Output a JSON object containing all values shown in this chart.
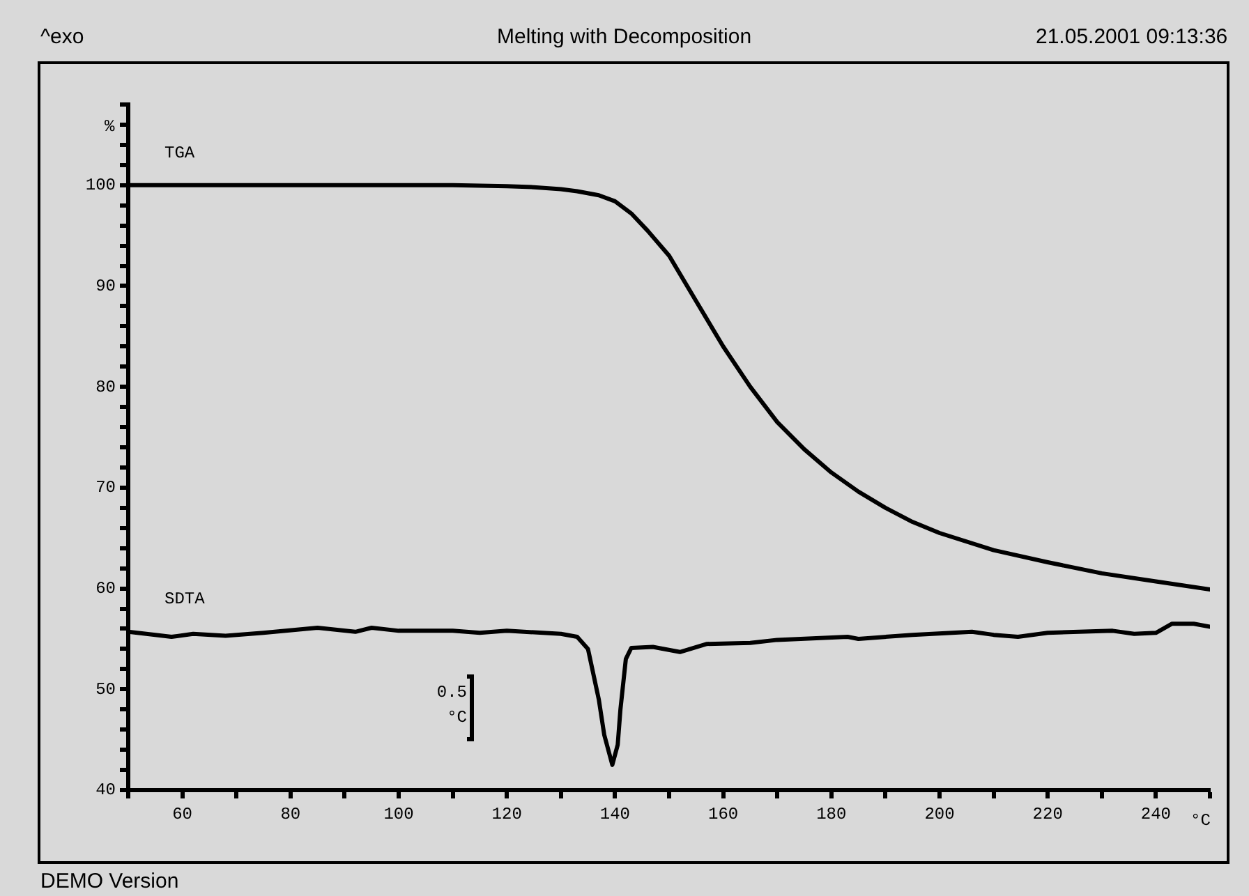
{
  "chart_data": {
    "type": "line",
    "title": "Melting with Decomposition",
    "xlabel": "°C",
    "ylabel": "%",
    "annotations": [
      "^exo",
      "21.05.2001 09:13:36",
      "0.5 °C",
      "DEMO Version"
    ],
    "xlim": [
      50,
      250
    ],
    "xticks": [
      {
        "value": 50,
        "label": null
      },
      60,
      {
        "value": 70,
        "label": null
      },
      80,
      {
        "value": 90,
        "label": null
      },
      100,
      {
        "value": 110,
        "label": null
      },
      120,
      {
        "value": 130,
        "label": null
      },
      140,
      {
        "value": 150,
        "label": null
      },
      160,
      {
        "value": 170,
        "label": null
      },
      180,
      {
        "value": 190,
        "label": null
      },
      200,
      {
        "value": 210,
        "label": null
      },
      220,
      {
        "value": 230,
        "label": null
      },
      240,
      {
        "value": 250,
        "label": null
      }
    ],
    "ylim": [
      40,
      108
    ],
    "yticks": [
      40,
      {
        "value": 42,
        "label": null
      },
      {
        "value": 44,
        "label": null
      },
      {
        "value": 46,
        "label": null
      },
      {
        "value": 48,
        "label": null
      },
      50,
      {
        "value": 52,
        "label": null
      },
      {
        "value": 54,
        "label": null
      },
      {
        "value": 56,
        "label": null
      },
      {
        "value": 58,
        "label": null
      },
      60,
      {
        "value": 62,
        "label": null
      },
      {
        "value": 64,
        "label": null
      },
      {
        "value": 66,
        "label": null
      },
      {
        "value": 68,
        "label": null
      },
      70,
      {
        "value": 72,
        "label": null
      },
      {
        "value": 74,
        "label": null
      },
      {
        "value": 76,
        "label": null
      },
      {
        "value": 78,
        "label": null
      },
      80,
      {
        "value": 82,
        "label": null
      },
      {
        "value": 84,
        "label": null
      },
      {
        "value": 86,
        "label": null
      },
      {
        "value": 88,
        "label": null
      },
      90,
      {
        "value": 92,
        "label": null
      },
      {
        "value": 94,
        "label": null
      },
      {
        "value": 96,
        "label": null
      },
      {
        "value": 98,
        "label": null
      },
      100,
      {
        "value": 102,
        "label": null
      },
      {
        "value": 104,
        "label": null
      },
      {
        "value": 106,
        "label": null
      },
      {
        "value": 108,
        "label": null
      }
    ],
    "grid": false,
    "legend": false,
    "marker": "none",
    "line_style": "solid",
    "series": [
      {
        "name": "TGA",
        "color": "#000000",
        "x": [
          50,
          70,
          90,
          110,
          120,
          125,
          130,
          133,
          137,
          140,
          143,
          146,
          150,
          155,
          160,
          165,
          170,
          175,
          180,
          185,
          190,
          195,
          200,
          210,
          220,
          230,
          240,
          250
        ],
        "values": [
          100,
          100,
          100,
          100,
          99.9,
          99.8,
          99.6,
          99.4,
          99,
          98.4,
          97.2,
          95.5,
          93,
          88.5,
          84,
          80,
          76.5,
          73.8,
          71.5,
          69.6,
          68,
          66.6,
          65.5,
          63.8,
          62.6,
          61.5,
          60.7,
          59.9
        ]
      },
      {
        "name": "SDTA",
        "color": "#000000",
        "x": [
          50,
          55,
          58,
          62,
          68,
          75,
          85,
          92,
          95,
          100,
          110,
          115,
          120,
          130,
          133,
          135,
          137,
          138,
          139.5,
          140.5,
          141,
          142,
          143,
          147,
          152,
          157,
          165,
          170,
          183,
          185,
          195,
          206,
          210,
          214.5,
          220,
          232,
          236,
          240,
          243,
          247,
          250
        ],
        "values": [
          55.7,
          55.4,
          55.2,
          55.5,
          55.3,
          55.6,
          56.1,
          55.7,
          56.1,
          55.8,
          55.8,
          55.6,
          55.8,
          55.5,
          55.2,
          54,
          49,
          45.5,
          42.5,
          44.5,
          48,
          53,
          54.1,
          54.2,
          53.7,
          54.5,
          54.6,
          54.9,
          55.2,
          55,
          55.4,
          55.7,
          55.4,
          55.2,
          55.6,
          55.8,
          55.5,
          55.6,
          56.5,
          56.5,
          56.2
        ]
      }
    ]
  }
}
